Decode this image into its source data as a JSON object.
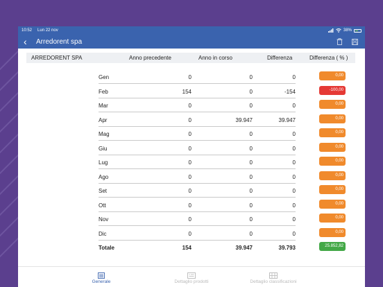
{
  "status_bar": {
    "time": "10:52",
    "date": "Lun 22 nov",
    "battery": "38%"
  },
  "header": {
    "title": "Arredorent spa"
  },
  "table": {
    "columns": [
      "ARREDORENT SPA",
      "Anno precedente",
      "Anno in corso",
      "Differenza",
      "Differenza ( % )"
    ],
    "rows": [
      {
        "month": "Gen",
        "prev": "0",
        "curr": "0",
        "diff": "0",
        "pct": "0,00",
        "status": "neutral"
      },
      {
        "month": "Feb",
        "prev": "154",
        "curr": "0",
        "diff": "-154",
        "pct": "-100,00",
        "status": "negative"
      },
      {
        "month": "Mar",
        "prev": "0",
        "curr": "0",
        "diff": "0",
        "pct": "0,00",
        "status": "neutral"
      },
      {
        "month": "Apr",
        "prev": "0",
        "curr": "39.947",
        "diff": "39.947",
        "pct": "0,00",
        "status": "neutral"
      },
      {
        "month": "Mag",
        "prev": "0",
        "curr": "0",
        "diff": "0",
        "pct": "0,00",
        "status": "neutral"
      },
      {
        "month": "Giu",
        "prev": "0",
        "curr": "0",
        "diff": "0",
        "pct": "0,00",
        "status": "neutral"
      },
      {
        "month": "Lug",
        "prev": "0",
        "curr": "0",
        "diff": "0",
        "pct": "0,00",
        "status": "neutral"
      },
      {
        "month": "Ago",
        "prev": "0",
        "curr": "0",
        "diff": "0",
        "pct": "0,00",
        "status": "neutral"
      },
      {
        "month": "Set",
        "prev": "0",
        "curr": "0",
        "diff": "0",
        "pct": "0,00",
        "status": "neutral"
      },
      {
        "month": "Ott",
        "prev": "0",
        "curr": "0",
        "diff": "0",
        "pct": "0,00",
        "status": "neutral"
      },
      {
        "month": "Nov",
        "prev": "0",
        "curr": "0",
        "diff": "0",
        "pct": "0,00",
        "status": "neutral"
      },
      {
        "month": "Dic",
        "prev": "0",
        "curr": "0",
        "diff": "0",
        "pct": "0,00",
        "status": "neutral"
      }
    ],
    "total": {
      "label": "Totale",
      "prev": "154",
      "curr": "39.947",
      "diff": "39.793",
      "pct": "25.852,82",
      "status": "positive"
    }
  },
  "colors": {
    "header": "#3a63ae",
    "neutral": "#f08a2c",
    "negative": "#e53935",
    "positive": "#43a847"
  },
  "tabs": [
    {
      "label": "Generale",
      "icon": "list-icon",
      "active": true
    },
    {
      "label": "Dettaglio prodotti",
      "icon": "product-detail-icon",
      "active": false
    },
    {
      "label": "Dettaglio classificazioni",
      "icon": "classification-icon",
      "active": false
    }
  ]
}
